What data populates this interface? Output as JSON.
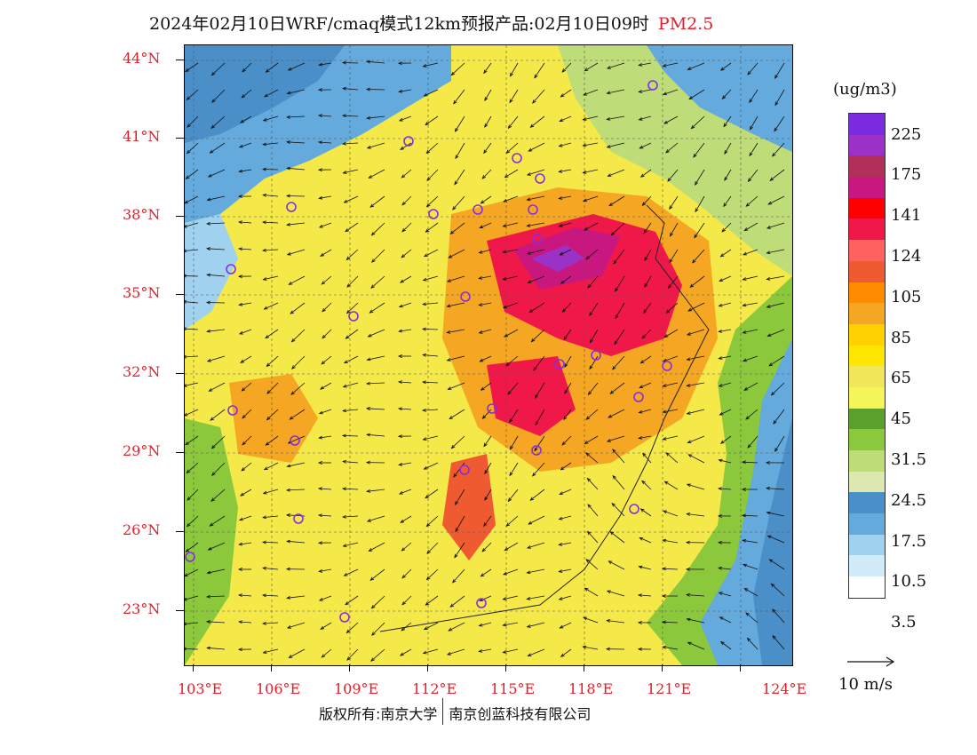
{
  "title": {
    "main": "2024年02月10日WRF/cmaq模式12km预报产品:02月10日09时",
    "species": "PM2.5"
  },
  "axes": {
    "lat_labels": [
      "44°N",
      "41°N",
      "38°N",
      "35°N",
      "32°N",
      "29°N",
      "26°N",
      "23°N"
    ],
    "lon_labels": [
      "103°E",
      "106°E",
      "109°E",
      "112°E",
      "115°E",
      "118°E",
      "121°E",
      "124°E"
    ]
  },
  "legend": {
    "unit": "(ug/m3)",
    "labels": [
      "225",
      "175",
      "141",
      "124",
      "105",
      "85",
      "65",
      "45",
      "31.5",
      "24.5",
      "17.5",
      "10.5",
      "3.5"
    ],
    "colors": [
      "#7a2be0",
      "#9a32c8",
      "#b0305a",
      "#c81880",
      "#ff0000",
      "#f01848",
      "#ff6060",
      "#f05a30",
      "#ff8c00",
      "#f5a623",
      "#ffd200",
      "#ffe600",
      "#f2e65a",
      "#f5f55a",
      "#5aa02c",
      "#8cc83c",
      "#bedc78",
      "#dce8b0",
      "#4a8fc8",
      "#64aadc",
      "#a0d2f0",
      "#d2ebf8",
      "#ffffff"
    ]
  },
  "wind_scale": {
    "label": "10 m/s"
  },
  "footer": {
    "copyright_left": "版权所有:南京大学",
    "copyright_right": "南京创蓝科技有限公司"
  },
  "map": {
    "palette": {
      "clean_blue": "#4a8fc8",
      "light_blue": "#a0d2f0",
      "green": "#8cc83c",
      "light_green": "#bedc78",
      "yellow": "#ffe600",
      "light_yellow": "#f2e65a",
      "orange": "#f5a623",
      "dark_orange": "#f05a30",
      "red": "#f01848",
      "purple": "#9a32c8"
    },
    "city_marker_color": "#8a2be2"
  }
}
